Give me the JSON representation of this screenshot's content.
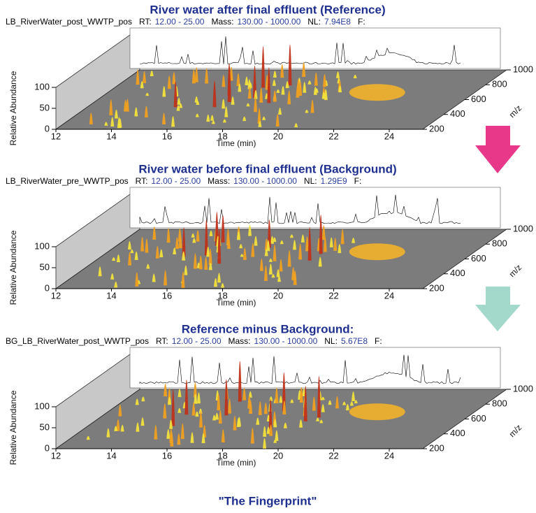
{
  "panels": [
    {
      "title": "River water after final effluent (Reference)",
      "file": "LB_RiverWater_post_WWTP_pos",
      "rt_label": "RT:",
      "rt": "12.00 - 25.00",
      "mass_label": "Mass:",
      "mass": "130.00 - 1000.00",
      "nl_label": "NL:",
      "nl": "7.94E8",
      "f_label": "F:",
      "y_axis_label": "Relative Abundance",
      "y_ticks": [
        "0",
        "50",
        "100"
      ],
      "x_axis_label": "Time (min)",
      "x_ticks": [
        "12",
        "14",
        "16",
        "18",
        "20",
        "22",
        "24"
      ],
      "z_axis_label": "m/z",
      "z_ticks": [
        "200",
        "400",
        "600",
        "800",
        "1000"
      ]
    },
    {
      "title": "River water before final effluent (Background)",
      "file": "LB_RiverWater_pre_WWTP_pos",
      "rt_label": "RT:",
      "rt": "12.00 - 25.00",
      "mass_label": "Mass:",
      "mass": "130.00 - 1000.00",
      "nl_label": "NL:",
      "nl": "1.29E9",
      "f_label": "F:",
      "y_axis_label": "Relative Abundance",
      "y_ticks": [
        "0",
        "50",
        "100"
      ],
      "x_axis_label": "Time (min)",
      "x_ticks": [
        "12",
        "14",
        "16",
        "18",
        "20",
        "22",
        "24"
      ],
      "z_axis_label": "m/z",
      "z_ticks": [
        "200",
        "400",
        "600",
        "800",
        "1000"
      ]
    },
    {
      "title": "Reference minus Background:",
      "file": "BG_LB_RiverWater_post_WWTP_pos",
      "rt_label": "RT:",
      "rt": "12.00 - 25.00",
      "mass_label": "Mass:",
      "mass": "130.00 - 1000.00",
      "nl_label": "NL:",
      "nl": "5.67E8",
      "f_label": "F:",
      "y_axis_label": "Relative Abundance",
      "y_ticks": [
        "0",
        "50",
        "100"
      ],
      "x_axis_label": "Time (min)",
      "x_ticks": [
        "12",
        "14",
        "16",
        "18",
        "20",
        "22",
        "24"
      ],
      "z_axis_label": "m/z",
      "z_ticks": [
        "200",
        "400",
        "600",
        "800",
        "1000"
      ]
    }
  ],
  "footer": "\"The Fingerprint\""
}
